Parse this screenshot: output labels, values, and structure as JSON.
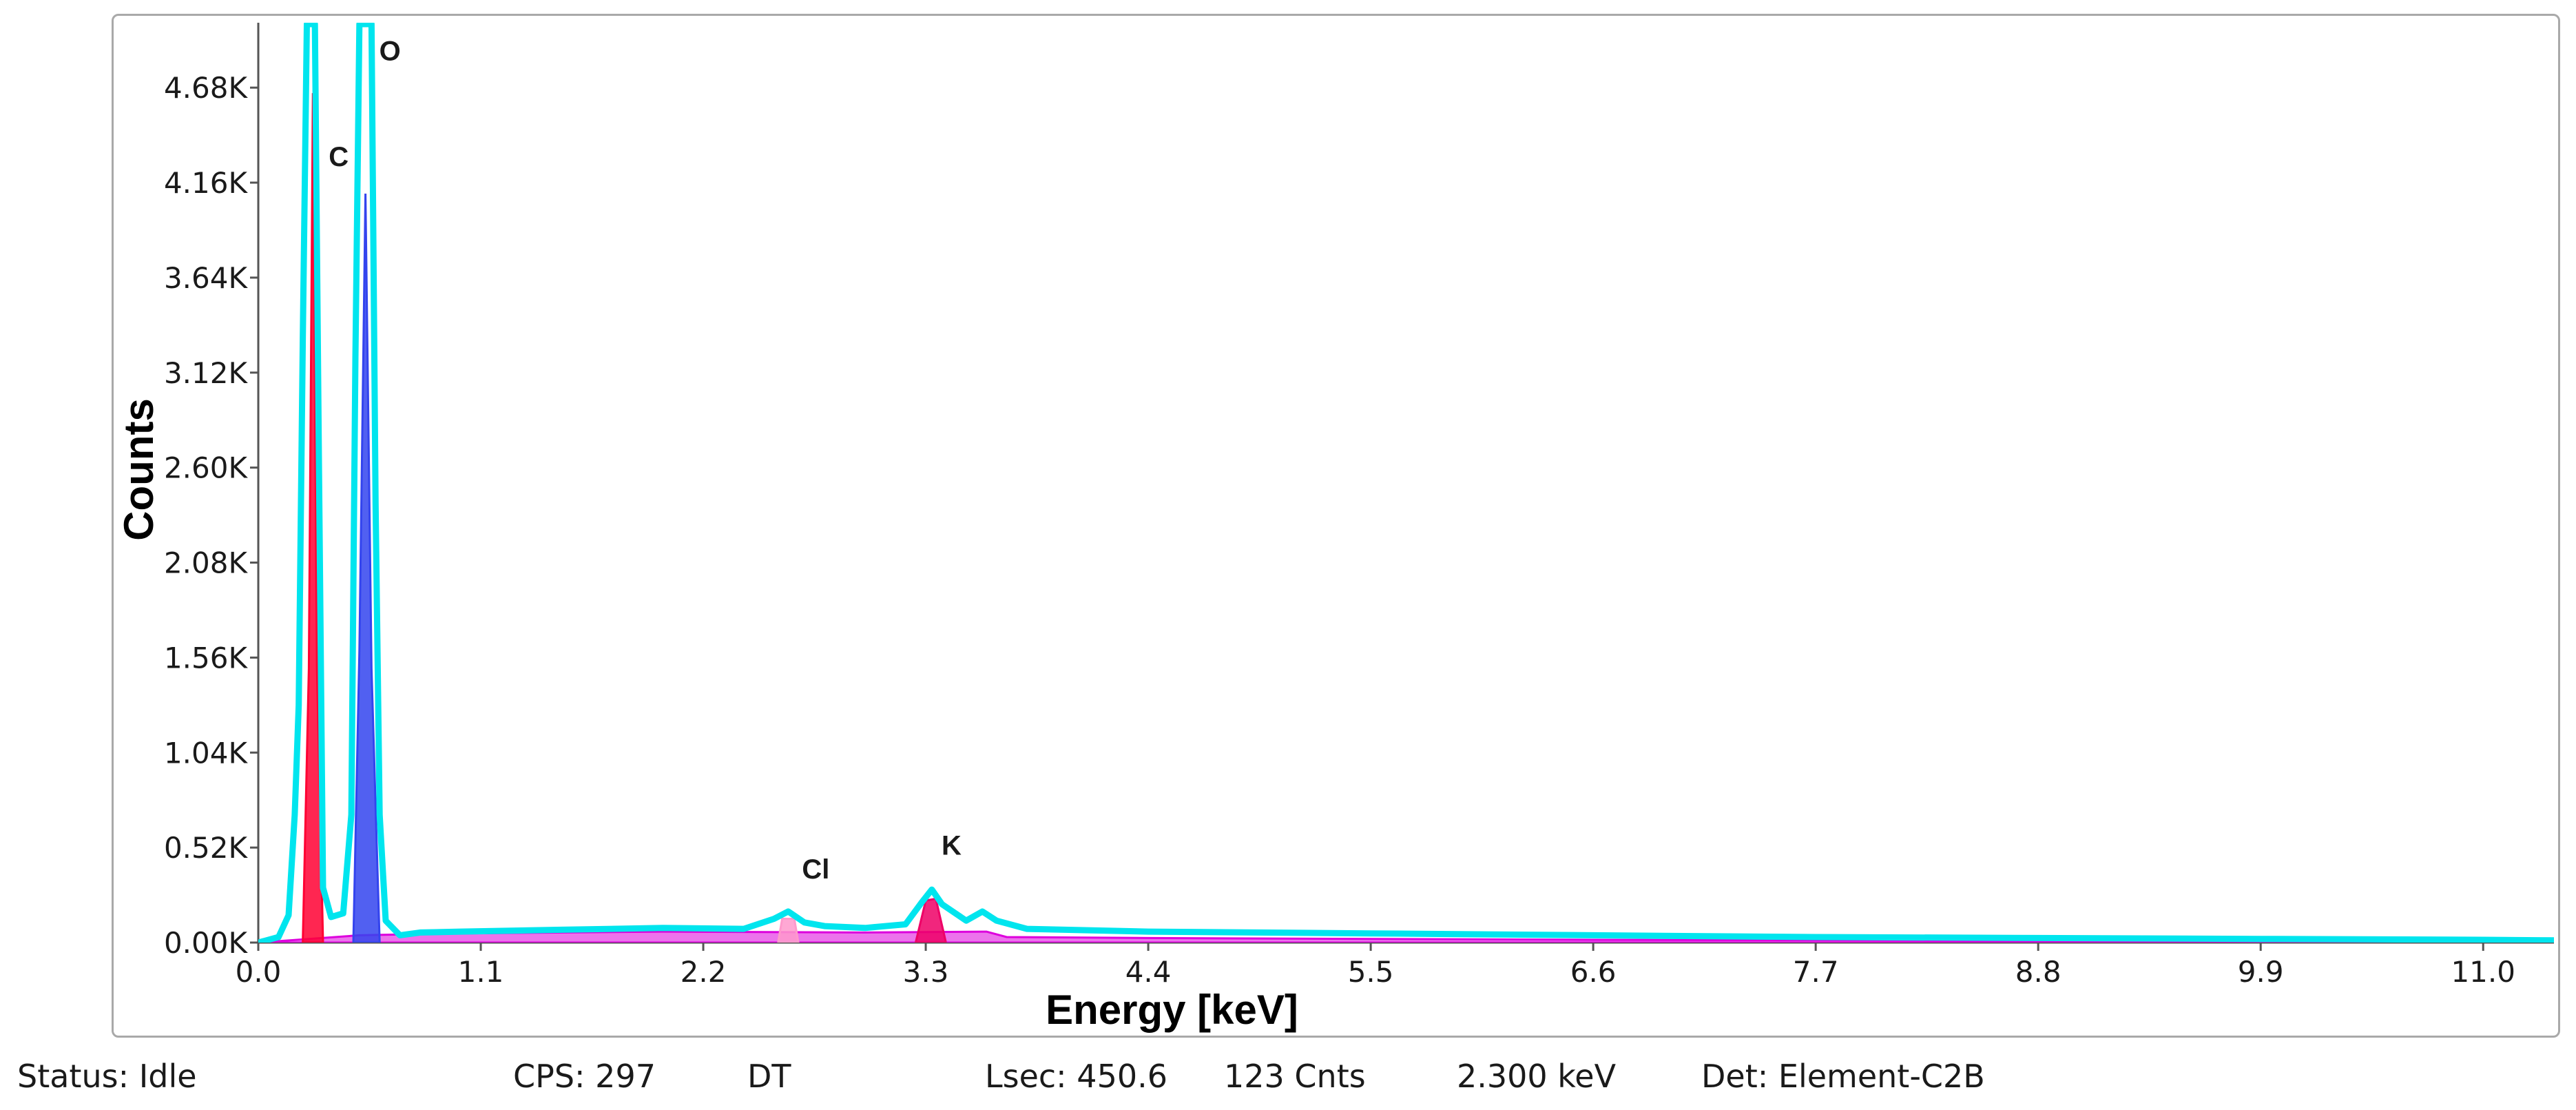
{
  "chart_data": {
    "type": "line",
    "title": "",
    "xlabel": "Energy [keV]",
    "ylabel": "Counts",
    "xlim": [
      0.0,
      11.35
    ],
    "ylim": [
      0,
      4990
    ],
    "x_ticks": [
      "0.0",
      "1.1",
      "2.2",
      "3.3",
      "4.4",
      "5.5",
      "6.6",
      "7.7",
      "8.8",
      "9.9",
      "11.0"
    ],
    "y_ticks": [
      "0.00K",
      "0.52K",
      "1.04K",
      "1.56K",
      "2.08K",
      "2.60K",
      "3.12K",
      "3.64K",
      "4.16K",
      "4.68K"
    ],
    "peak_labels": [
      {
        "text": "C",
        "x": 0.28,
        "y": 4250
      },
      {
        "text": "O",
        "x": 0.53,
        "y": 4830
      },
      {
        "text": "Cl",
        "x": 2.62,
        "y": 350
      },
      {
        "text": "K",
        "x": 3.31,
        "y": 480
      }
    ],
    "series": [
      {
        "name": "Measured spectrum",
        "color": "#00e5ee",
        "points": [
          [
            0.0,
            0
          ],
          [
            0.1,
            30
          ],
          [
            0.15,
            150
          ],
          [
            0.18,
            700
          ],
          [
            0.2,
            1300
          ],
          [
            0.22,
            3300
          ],
          [
            0.24,
            5200
          ],
          [
            0.28,
            5200
          ],
          [
            0.3,
            2600
          ],
          [
            0.32,
            300
          ],
          [
            0.36,
            140
          ],
          [
            0.42,
            160
          ],
          [
            0.46,
            700
          ],
          [
            0.48,
            3200
          ],
          [
            0.5,
            5200
          ],
          [
            0.56,
            5200
          ],
          [
            0.58,
            2400
          ],
          [
            0.6,
            700
          ],
          [
            0.63,
            120
          ],
          [
            0.7,
            40
          ],
          [
            0.8,
            55
          ],
          [
            1.0,
            60
          ],
          [
            1.5,
            70
          ],
          [
            2.0,
            80
          ],
          [
            2.4,
            75
          ],
          [
            2.55,
            130
          ],
          [
            2.62,
            170
          ],
          [
            2.7,
            110
          ],
          [
            2.8,
            90
          ],
          [
            3.0,
            80
          ],
          [
            3.2,
            100
          ],
          [
            3.28,
            220
          ],
          [
            3.33,
            290
          ],
          [
            3.38,
            210
          ],
          [
            3.5,
            120
          ],
          [
            3.58,
            170
          ],
          [
            3.65,
            120
          ],
          [
            3.8,
            75
          ],
          [
            4.4,
            60
          ],
          [
            5.5,
            50
          ],
          [
            6.6,
            40
          ],
          [
            7.7,
            30
          ],
          [
            8.8,
            25
          ],
          [
            9.9,
            20
          ],
          [
            11.0,
            15
          ],
          [
            11.35,
            12
          ]
        ]
      },
      {
        "name": "C fit",
        "color": "#ff0033",
        "points": [
          [
            0.22,
            0
          ],
          [
            0.25,
            1500
          ],
          [
            0.27,
            4650
          ],
          [
            0.29,
            1500
          ],
          [
            0.32,
            0
          ]
        ]
      },
      {
        "name": "O fit",
        "color": "#3344ee",
        "points": [
          [
            0.47,
            0
          ],
          [
            0.5,
            1600
          ],
          [
            0.53,
            4100
          ],
          [
            0.56,
            1500
          ],
          [
            0.6,
            0
          ]
        ]
      },
      {
        "name": "Cl fit",
        "color": "#ff99cc",
        "points": [
          [
            2.57,
            0
          ],
          [
            2.59,
            130
          ],
          [
            2.65,
            130
          ],
          [
            2.67,
            0
          ]
        ]
      },
      {
        "name": "K fit",
        "color": "#ee0066",
        "points": [
          [
            3.25,
            0
          ],
          [
            3.3,
            230
          ],
          [
            3.35,
            240
          ],
          [
            3.4,
            0
          ]
        ]
      },
      {
        "name": "Background",
        "color": "#dd00dd",
        "points": [
          [
            0.0,
            0
          ],
          [
            0.5,
            40
          ],
          [
            1.0,
            50
          ],
          [
            2.0,
            60
          ],
          [
            3.0,
            55
          ],
          [
            3.6,
            60
          ],
          [
            3.7,
            30
          ],
          [
            4.4,
            25
          ],
          [
            6.6,
            15
          ],
          [
            11.35,
            5
          ]
        ]
      }
    ]
  },
  "status_bar": {
    "status": "Status: Idle",
    "cps": "CPS: 297",
    "dt": "DT",
    "lsec": "Lsec: 450.6",
    "cnts": "123 Cnts",
    "kev": "2.300 keV",
    "det": "Det: Element-C2B"
  }
}
